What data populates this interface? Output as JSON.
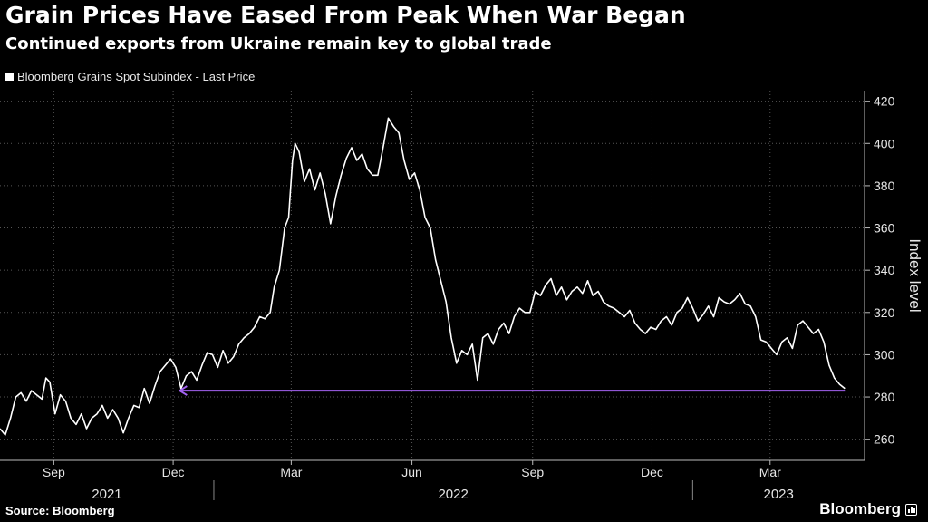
{
  "title": "Grain Prices Have Eased From Peak When War Began",
  "subtitle": "Continued exports from Ukraine remain key to global trade",
  "source": "Source: Bloomberg",
  "brand": "Bloomberg",
  "colors": {
    "background": "#000000",
    "series": "#ffffff",
    "annotation": "#a463f2",
    "grid": "#555555"
  },
  "chart_data": {
    "type": "line",
    "ylabel": "Index level",
    "ylim": [
      250,
      425
    ],
    "yticks": [
      260,
      280,
      300,
      320,
      340,
      360,
      380,
      400,
      420
    ],
    "y_axis_side": "right",
    "grid": true,
    "legend": "top-left",
    "xlim": [
      "2021-07-22",
      "2023-05-12"
    ],
    "xticks": [
      {
        "date": "2021-09-01",
        "label": "Sep"
      },
      {
        "date": "2021-12-01",
        "label": "Dec"
      },
      {
        "date": "2022-03-01",
        "label": "Mar"
      },
      {
        "date": "2022-06-01",
        "label": "Jun"
      },
      {
        "date": "2022-09-01",
        "label": "Sep"
      },
      {
        "date": "2022-12-01",
        "label": "Dec"
      },
      {
        "date": "2023-03-01",
        "label": "Mar"
      }
    ],
    "year_labels": [
      {
        "label": "2021",
        "from": "2021-07-22",
        "to": "2022-01-01"
      },
      {
        "label": "2022",
        "from": "2022-01-01",
        "to": "2023-01-01"
      },
      {
        "label": "2023",
        "from": "2023-01-01",
        "to": "2023-05-12"
      }
    ],
    "series": [
      {
        "name": "Bloomberg Grains Spot Subindex - Last Price",
        "points": [
          [
            "2021-07-22",
            265
          ],
          [
            "2021-07-26",
            262
          ],
          [
            "2021-07-30",
            270
          ],
          [
            "2021-08-03",
            280
          ],
          [
            "2021-08-07",
            282
          ],
          [
            "2021-08-11",
            278
          ],
          [
            "2021-08-15",
            283
          ],
          [
            "2021-08-19",
            281
          ],
          [
            "2021-08-23",
            279
          ],
          [
            "2021-08-26",
            289
          ],
          [
            "2021-08-29",
            287
          ],
          [
            "2021-09-02",
            272
          ],
          [
            "2021-09-06",
            281
          ],
          [
            "2021-09-10",
            278
          ],
          [
            "2021-09-14",
            270
          ],
          [
            "2021-09-18",
            267
          ],
          [
            "2021-09-22",
            272
          ],
          [
            "2021-09-26",
            265
          ],
          [
            "2021-09-30",
            270
          ],
          [
            "2021-10-04",
            272
          ],
          [
            "2021-10-08",
            276
          ],
          [
            "2021-10-12",
            270
          ],
          [
            "2021-10-16",
            274
          ],
          [
            "2021-10-20",
            270
          ],
          [
            "2021-10-24",
            263
          ],
          [
            "2021-10-28",
            270
          ],
          [
            "2021-11-01",
            276
          ],
          [
            "2021-11-05",
            275
          ],
          [
            "2021-11-09",
            284
          ],
          [
            "2021-11-13",
            277
          ],
          [
            "2021-11-17",
            285
          ],
          [
            "2021-11-21",
            292
          ],
          [
            "2021-11-25",
            295
          ],
          [
            "2021-11-29",
            298
          ],
          [
            "2021-12-03",
            294
          ],
          [
            "2021-12-07",
            284
          ],
          [
            "2021-12-11",
            290
          ],
          [
            "2021-12-15",
            292
          ],
          [
            "2021-12-19",
            288
          ],
          [
            "2021-12-23",
            295
          ],
          [
            "2021-12-27",
            301
          ],
          [
            "2021-12-31",
            300
          ],
          [
            "2022-01-04",
            294
          ],
          [
            "2022-01-08",
            302
          ],
          [
            "2022-01-12",
            296
          ],
          [
            "2022-01-16",
            299
          ],
          [
            "2022-01-20",
            305
          ],
          [
            "2022-01-24",
            308
          ],
          [
            "2022-01-28",
            310
          ],
          [
            "2022-02-01",
            313
          ],
          [
            "2022-02-05",
            318
          ],
          [
            "2022-02-09",
            317
          ],
          [
            "2022-02-13",
            320
          ],
          [
            "2022-02-16",
            332
          ],
          [
            "2022-02-20",
            340
          ],
          [
            "2022-02-24",
            360
          ],
          [
            "2022-02-27",
            365
          ],
          [
            "2022-03-02",
            392
          ],
          [
            "2022-03-04",
            400
          ],
          [
            "2022-03-07",
            396
          ],
          [
            "2022-03-11",
            382
          ],
          [
            "2022-03-15",
            388
          ],
          [
            "2022-03-19",
            378
          ],
          [
            "2022-03-23",
            386
          ],
          [
            "2022-03-27",
            376
          ],
          [
            "2022-03-31",
            362
          ],
          [
            "2022-04-04",
            375
          ],
          [
            "2022-04-08",
            385
          ],
          [
            "2022-04-12",
            393
          ],
          [
            "2022-04-16",
            398
          ],
          [
            "2022-04-20",
            392
          ],
          [
            "2022-04-24",
            395
          ],
          [
            "2022-04-28",
            388
          ],
          [
            "2022-05-02",
            385
          ],
          [
            "2022-05-06",
            385
          ],
          [
            "2022-05-10",
            398
          ],
          [
            "2022-05-14",
            412
          ],
          [
            "2022-05-18",
            408
          ],
          [
            "2022-05-22",
            405
          ],
          [
            "2022-05-26",
            392
          ],
          [
            "2022-05-30",
            383
          ],
          [
            "2022-06-03",
            386
          ],
          [
            "2022-06-07",
            378
          ],
          [
            "2022-06-11",
            365
          ],
          [
            "2022-06-15",
            360
          ],
          [
            "2022-06-19",
            345
          ],
          [
            "2022-06-23",
            335
          ],
          [
            "2022-06-27",
            325
          ],
          [
            "2022-07-01",
            308
          ],
          [
            "2022-07-05",
            296
          ],
          [
            "2022-07-09",
            302
          ],
          [
            "2022-07-13",
            300
          ],
          [
            "2022-07-17",
            305
          ],
          [
            "2022-07-21",
            288
          ],
          [
            "2022-07-25",
            308
          ],
          [
            "2022-07-29",
            310
          ],
          [
            "2022-08-02",
            305
          ],
          [
            "2022-08-06",
            312
          ],
          [
            "2022-08-10",
            315
          ],
          [
            "2022-08-14",
            310
          ],
          [
            "2022-08-18",
            318
          ],
          [
            "2022-08-22",
            322
          ],
          [
            "2022-08-26",
            320
          ],
          [
            "2022-08-30",
            320
          ],
          [
            "2022-09-03",
            330
          ],
          [
            "2022-09-07",
            328
          ],
          [
            "2022-09-11",
            333
          ],
          [
            "2022-09-15",
            336
          ],
          [
            "2022-09-19",
            328
          ],
          [
            "2022-09-23",
            332
          ],
          [
            "2022-09-27",
            326
          ],
          [
            "2022-10-01",
            330
          ],
          [
            "2022-10-05",
            332
          ],
          [
            "2022-10-09",
            329
          ],
          [
            "2022-10-13",
            335
          ],
          [
            "2022-10-17",
            328
          ],
          [
            "2022-10-21",
            330
          ],
          [
            "2022-10-25",
            325
          ],
          [
            "2022-10-29",
            323
          ],
          [
            "2022-11-02",
            322
          ],
          [
            "2022-11-06",
            320
          ],
          [
            "2022-11-10",
            318
          ],
          [
            "2022-11-14",
            321
          ],
          [
            "2022-11-18",
            315
          ],
          [
            "2022-11-22",
            312
          ],
          [
            "2022-11-26",
            310
          ],
          [
            "2022-11-30",
            313
          ],
          [
            "2022-12-04",
            312
          ],
          [
            "2022-12-08",
            316
          ],
          [
            "2022-12-12",
            318
          ],
          [
            "2022-12-16",
            314
          ],
          [
            "2022-12-20",
            320
          ],
          [
            "2022-12-24",
            322
          ],
          [
            "2022-12-28",
            327
          ],
          [
            "2023-01-01",
            322
          ],
          [
            "2023-01-05",
            316
          ],
          [
            "2023-01-09",
            319
          ],
          [
            "2023-01-13",
            323
          ],
          [
            "2023-01-17",
            318
          ],
          [
            "2023-01-21",
            327
          ],
          [
            "2023-01-25",
            325
          ],
          [
            "2023-01-29",
            324
          ],
          [
            "2023-02-02",
            326
          ],
          [
            "2023-02-06",
            329
          ],
          [
            "2023-02-10",
            324
          ],
          [
            "2023-02-14",
            323
          ],
          [
            "2023-02-18",
            318
          ],
          [
            "2023-02-22",
            307
          ],
          [
            "2023-02-26",
            306
          ],
          [
            "2023-03-02",
            303
          ],
          [
            "2023-03-06",
            300
          ],
          [
            "2023-03-10",
            306
          ],
          [
            "2023-03-14",
            308
          ],
          [
            "2023-03-18",
            303
          ],
          [
            "2023-03-22",
            314
          ],
          [
            "2023-03-26",
            316
          ],
          [
            "2023-03-30",
            313
          ],
          [
            "2023-04-03",
            310
          ],
          [
            "2023-04-07",
            312
          ],
          [
            "2023-04-11",
            306
          ],
          [
            "2023-04-15",
            295
          ],
          [
            "2023-04-19",
            289
          ],
          [
            "2023-04-23",
            286
          ],
          [
            "2023-04-27",
            284
          ]
        ]
      }
    ],
    "annotation": {
      "type": "arrow",
      "y": 283,
      "from": "2023-04-27",
      "to": "2021-12-06"
    }
  }
}
